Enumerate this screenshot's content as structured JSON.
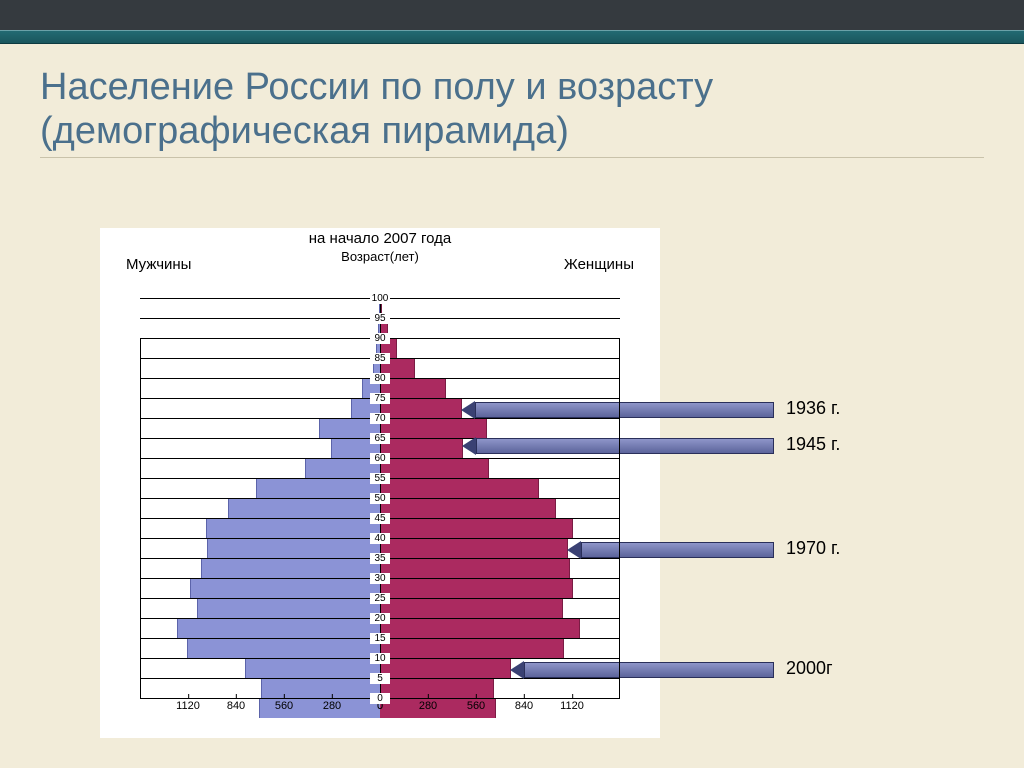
{
  "slide": {
    "title": "Население России по полу и возрасту (демографическая пирамида)",
    "chart_title": "на начало 2007 года",
    "axis_label": "Возраст(лет)",
    "male_label": "Мужчины",
    "female_label": "Женщины"
  },
  "chart": {
    "type": "population-pyramid",
    "background_color": "#ffffff",
    "grid_color": "#000000",
    "male_fill": "#8b93d6",
    "male_stroke": "#5c64aa",
    "female_fill": "#ab2a60",
    "female_stroke": "#7a1c44",
    "x_max": 1400,
    "x_ticks_left": [
      1120,
      840,
      560,
      280,
      0
    ],
    "x_ticks_right": [
      0,
      280,
      560,
      840,
      1120
    ],
    "ages": [
      100,
      95,
      90,
      85,
      80,
      75,
      70,
      65,
      60,
      55,
      50,
      45,
      40,
      35,
      30,
      25,
      20,
      15,
      10,
      5,
      0
    ],
    "male": [
      0,
      5,
      15,
      35,
      100,
      165,
      350,
      280,
      430,
      720,
      880,
      1010,
      1005,
      1040,
      1100,
      1060,
      1180,
      1120,
      780,
      690,
      700
    ],
    "female": [
      5,
      40,
      95,
      200,
      380,
      470,
      620,
      480,
      630,
      920,
      1020,
      1120,
      1090,
      1100,
      1120,
      1060,
      1160,
      1070,
      760,
      660,
      670
    ]
  },
  "annotations": [
    {
      "label": "1936 г.",
      "age": 72
    },
    {
      "label": "1945 г.",
      "age": 63
    },
    {
      "label": "1970 г.",
      "age": 37
    },
    {
      "label": "2000г",
      "age": 7
    }
  ],
  "annotation_arrow": {
    "body_fill_top": "#8e95c9",
    "body_fill_bottom": "#5c649b",
    "head_color": "#3a4173",
    "border_color": "#2a2f5a"
  }
}
